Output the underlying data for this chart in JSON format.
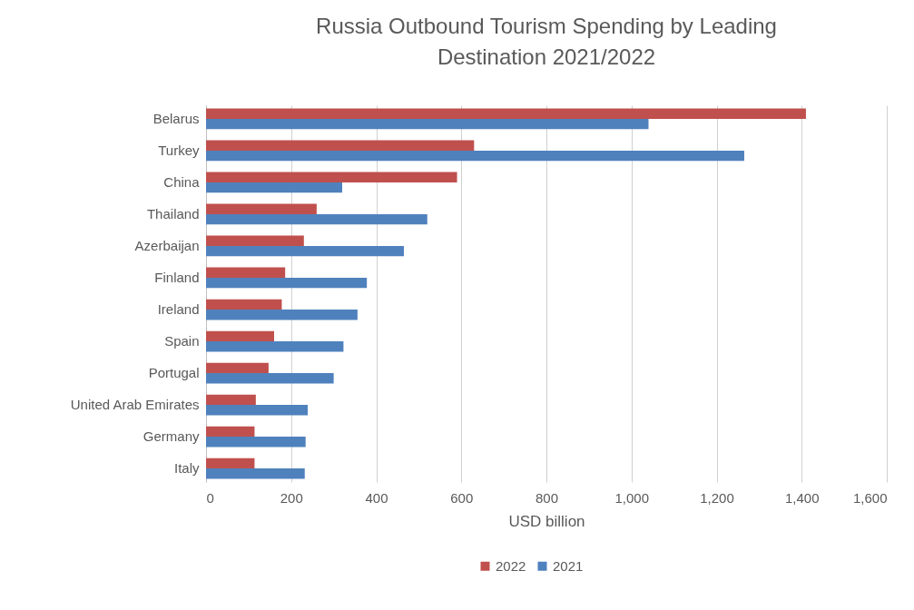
{
  "chart_data": {
    "type": "bar",
    "orientation": "horizontal",
    "title": "Russia Outbound Tourism Spending by Leading Destination 2021/2022",
    "xlabel": "USD billion",
    "categories": [
      "Belarus",
      "Turkey",
      "China",
      "Thailand",
      "Azerbaijan",
      "Finland",
      "Ireland",
      "Spain",
      "Portugal",
      "United Arab Emirates",
      "Germany",
      "Italy"
    ],
    "series": [
      {
        "name": "2022",
        "color": "#c0504d",
        "values": [
          1410,
          630,
          590,
          260,
          230,
          186,
          178,
          160,
          147,
          117,
          114,
          114
        ]
      },
      {
        "name": "2021",
        "color": "#4f81bd",
        "values": [
          1040,
          1265,
          320,
          520,
          465,
          378,
          356,
          323,
          300,
          239,
          234,
          232
        ]
      }
    ],
    "xlim": [
      0,
      1600
    ],
    "xticks": [
      0,
      {
        "value": 200,
        "label": "200"
      },
      {
        "value": 400,
        "label": "400"
      },
      {
        "value": 600,
        "label": "600"
      },
      {
        "value": 800,
        "label": "800"
      },
      {
        "value": 1000,
        "label": "1,000"
      },
      {
        "value": 1200,
        "label": "1,200"
      },
      {
        "value": 1400,
        "label": "1,400"
      },
      {
        "value": 1600,
        "label": "1,600"
      }
    ],
    "grid": "x",
    "legend": "bottom"
  }
}
